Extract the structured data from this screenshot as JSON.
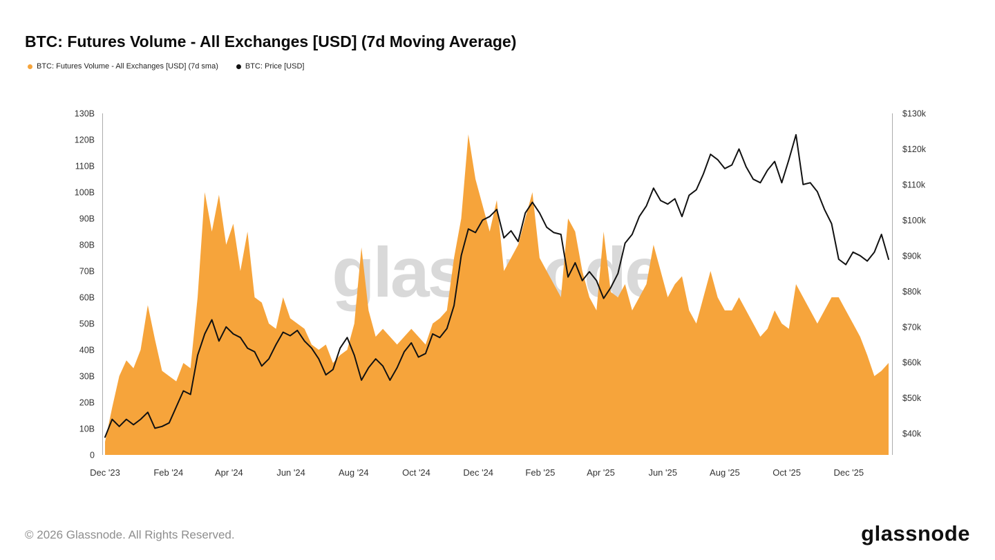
{
  "header": {
    "title": "BTC: Futures Volume - All Exchanges [USD] (7d Moving Average)"
  },
  "legend": [
    {
      "label": "BTC: Futures Volume - All Exchanges [USD] (7d sma)",
      "color": "#F6A43B"
    },
    {
      "label": "BTC: Price [USD]",
      "color": "#111111"
    }
  ],
  "watermark": "glassnode",
  "footer": {
    "copyright": "© 2026 Glassnode. All Rights Reserved.",
    "logo_text": "glassnode"
  },
  "chart_data": {
    "type": "area+line",
    "title": "BTC: Futures Volume - All Exchanges [USD] (7d Moving Average)",
    "x_start_date": "2023-12-01",
    "x_step_days": 7,
    "x_axis": {
      "tick_labels": [
        "Dec '23",
        "Feb '24",
        "Apr '24",
        "Jun '24",
        "Aug '24",
        "Oct '24",
        "Dec '24",
        "Feb '25",
        "Apr '25",
        "Jun '25",
        "Aug '25",
        "Oct '25",
        "Dec '25"
      ],
      "tick_weeks": [
        0,
        8.9,
        17.4,
        26.1,
        34.9,
        43.7,
        52.4,
        61.1,
        69.6,
        78.3,
        87.0,
        95.7,
        104.4
      ]
    },
    "left_axis": {
      "unit": "billions USD (futures volume, 7d sma)",
      "range": [
        0,
        130
      ],
      "ticks": [
        "0",
        "10B",
        "20B",
        "30B",
        "40B",
        "50B",
        "60B",
        "70B",
        "80B",
        "90B",
        "100B",
        "110B",
        "120B",
        "130B"
      ]
    },
    "right_axis": {
      "unit": "thousands USD (BTC price)",
      "range": [
        34,
        130
      ],
      "ticks": [
        "$40k",
        "$50k",
        "$60k",
        "$70k",
        "$80k",
        "$90k",
        "$100k",
        "$110k",
        "$120k",
        "$130k"
      ]
    },
    "grid": false,
    "legend_position": "top-left",
    "series": [
      {
        "name": "BTC: Futures Volume - All Exchanges [USD] (7d sma)",
        "type": "area",
        "axis": "left",
        "color": "#F6A43B",
        "values": [
          5,
          18,
          30,
          36,
          33,
          40,
          57,
          44,
          32,
          30,
          28,
          35,
          33,
          60,
          100,
          85,
          99,
          80,
          88,
          70,
          85,
          60,
          58,
          50,
          48,
          60,
          52,
          50,
          48,
          42,
          40,
          42,
          35,
          38,
          40,
          50,
          79,
          55,
          45,
          48,
          45,
          42,
          45,
          48,
          45,
          42,
          50,
          52,
          55,
          75,
          90,
          122,
          105,
          95,
          85,
          97,
          70,
          75,
          80,
          90,
          100,
          75,
          70,
          65,
          60,
          90,
          85,
          70,
          60,
          55,
          85,
          62,
          60,
          65,
          55,
          60,
          65,
          80,
          70,
          60,
          65,
          68,
          55,
          50,
          60,
          70,
          60,
          55,
          55,
          60,
          55,
          50,
          45,
          48,
          55,
          50,
          48,
          65,
          60,
          55,
          50,
          55,
          60,
          60,
          55,
          50,
          45,
          38,
          30,
          32,
          35
        ]
      },
      {
        "name": "BTC: Price [USD]",
        "type": "line",
        "axis": "right",
        "color": "#111111",
        "values": [
          39,
          44,
          42,
          44,
          42.5,
          44,
          46,
          41.5,
          42,
          43,
          47.5,
          52,
          51,
          62,
          68,
          72,
          66,
          70,
          68,
          67,
          64,
          63,
          59,
          61,
          65,
          68.5,
          67.5,
          69,
          66,
          64,
          61,
          56.5,
          58,
          64,
          67,
          62,
          55,
          58.5,
          61,
          59,
          55,
          58.5,
          63,
          65.5,
          61.5,
          62.5,
          68,
          67,
          69.5,
          76,
          90,
          97.5,
          96.5,
          100,
          101,
          103,
          95,
          97,
          94,
          102,
          105,
          102,
          98,
          96.5,
          96,
          84,
          88,
          83,
          85.5,
          83,
          78,
          81,
          85,
          93.5,
          96,
          101,
          104,
          109,
          105.5,
          104.5,
          106,
          101,
          107,
          108.5,
          113,
          118.5,
          117,
          114.5,
          115.5,
          120,
          115,
          111.5,
          110.5,
          114,
          116.5,
          110.5,
          117,
          124,
          110,
          110.5,
          108,
          103,
          99,
          89,
          87.5,
          91,
          90,
          88.5,
          91,
          96,
          89
        ]
      }
    ]
  }
}
